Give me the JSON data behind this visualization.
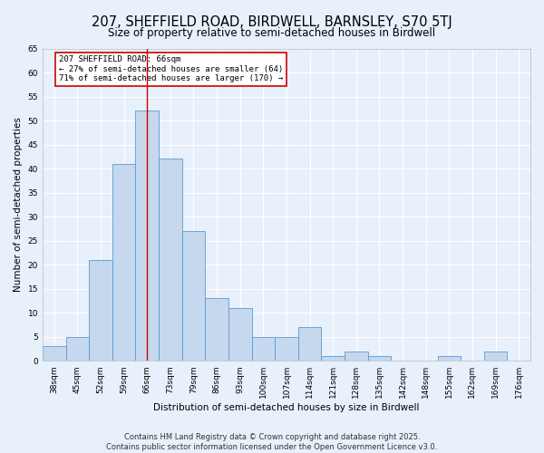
{
  "title": "207, SHEFFIELD ROAD, BIRDWELL, BARNSLEY, S70 5TJ",
  "subtitle": "Size of property relative to semi-detached houses in Birdwell",
  "xlabel": "Distribution of semi-detached houses by size in Birdwell",
  "ylabel": "Number of semi-detached properties",
  "categories": [
    "38sqm",
    "45sqm",
    "52sqm",
    "59sqm",
    "66sqm",
    "73sqm",
    "79sqm",
    "86sqm",
    "93sqm",
    "100sqm",
    "107sqm",
    "114sqm",
    "121sqm",
    "128sqm",
    "135sqm",
    "142sqm",
    "148sqm",
    "155sqm",
    "162sqm",
    "169sqm",
    "176sqm"
  ],
  "values": [
    3,
    5,
    21,
    41,
    52,
    42,
    27,
    13,
    11,
    5,
    5,
    7,
    1,
    2,
    1,
    0,
    0,
    1,
    0,
    2,
    0
  ],
  "bar_color": "#c5d8ed",
  "bar_edge_color": "#5b9bd5",
  "highlight_index": 4,
  "ylim": [
    0,
    65
  ],
  "yticks": [
    0,
    5,
    10,
    15,
    20,
    25,
    30,
    35,
    40,
    45,
    50,
    55,
    60,
    65
  ],
  "annotation_title": "207 SHEFFIELD ROAD: 66sqm",
  "annotation_line1": "← 27% of semi-detached houses are smaller (64)",
  "annotation_line2": "71% of semi-detached houses are larger (170) →",
  "annotation_box_color": "#ffffff",
  "annotation_box_edge": "#cc0000",
  "red_line_color": "#cc0000",
  "background_color": "#e8f0fb",
  "grid_color": "#ffffff",
  "footer_line1": "Contains HM Land Registry data © Crown copyright and database right 2025.",
  "footer_line2": "Contains public sector information licensed under the Open Government Licence v3.0.",
  "title_fontsize": 10.5,
  "subtitle_fontsize": 8.5,
  "axis_label_fontsize": 7.5,
  "tick_fontsize": 6.5,
  "annotation_fontsize": 6.5,
  "footer_fontsize": 6
}
